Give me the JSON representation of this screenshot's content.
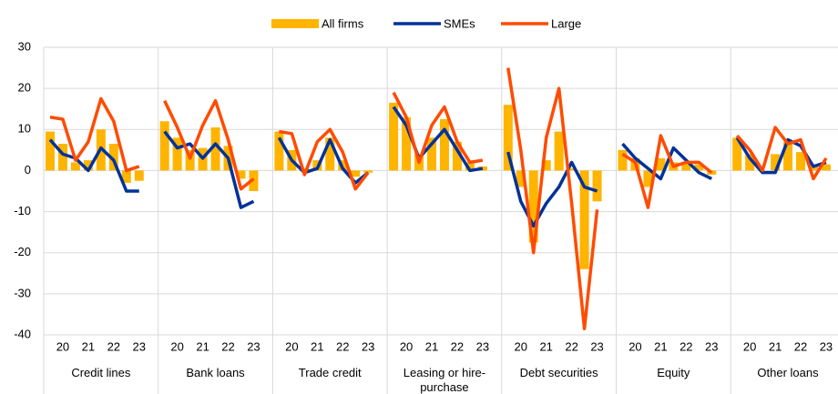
{
  "chart_data": {
    "type": "bar-line",
    "groups": [
      "Credit lines",
      "Bank loans",
      "Trade credit",
      "Leasing or hire-purchase",
      "Debt securities",
      "Equity",
      "Other loans"
    ],
    "periods": [
      null,
      "20",
      null,
      "21",
      null,
      "22",
      null,
      "23"
    ],
    "series": [
      {
        "name": "All firms",
        "color": "#ffb400",
        "kind": "bar",
        "values": [
          [
            9.5,
            6.5,
            2,
            2.5,
            10,
            6.5,
            -3,
            -2.5
          ],
          [
            12,
            8,
            5,
            5.5,
            10.5,
            6,
            -2,
            -5
          ],
          [
            9.5,
            5,
            0.5,
            2.5,
            8,
            2.5,
            -1.5,
            -0.5
          ],
          [
            16.5,
            13,
            4,
            8,
            12.5,
            7,
            2,
            1
          ],
          [
            16,
            -4,
            -17.5,
            2.5,
            9.5,
            0.5,
            -24,
            -7.5
          ],
          [
            5,
            3,
            -4,
            3,
            2,
            2,
            1.5,
            -1
          ],
          [
            8,
            4,
            0,
            4,
            7,
            4.5,
            1,
            1.5
          ]
        ]
      },
      {
        "name": "SMEs",
        "color": "#003299",
        "kind": "line",
        "values": [
          [
            7.5,
            4,
            3,
            0,
            5.5,
            2.5,
            -5,
            -5
          ],
          [
            9.5,
            5.5,
            6.5,
            3,
            6.5,
            3,
            -9,
            -7.5
          ],
          [
            8,
            2.5,
            -0.5,
            0.5,
            7.5,
            0.5,
            -3,
            -0.5
          ],
          [
            15.5,
            11,
            3,
            6.5,
            10,
            5,
            0,
            0.5
          ],
          [
            4.5,
            -7.5,
            -13.5,
            -8,
            -4,
            2,
            -4,
            -5
          ],
          [
            6.5,
            3,
            0.5,
            -2,
            5.5,
            2.5,
            -0.5,
            -2
          ],
          [
            8,
            3,
            -0.5,
            -0.5,
            7.5,
            6,
            1,
            2
          ]
        ]
      },
      {
        "name": "Large",
        "color": "#ff4b00",
        "kind": "line",
        "values": [
          [
            13,
            12.5,
            2.5,
            7,
            17.5,
            12,
            0,
            1
          ],
          [
            17,
            10.5,
            3,
            11,
            17,
            7.5,
            -4.5,
            -2
          ],
          [
            9.5,
            9,
            -1,
            7,
            10,
            4.5,
            -4.5,
            -0.5
          ],
          [
            19,
            13,
            2,
            11,
            15.5,
            7,
            2,
            2.5
          ],
          [
            25,
            5,
            -20,
            8,
            20,
            -8,
            -38.5,
            -9.5
          ],
          [
            4,
            2,
            -9,
            8.5,
            1,
            2,
            2,
            -0.5
          ],
          [
            8.5,
            5,
            0,
            10.5,
            6.5,
            7.5,
            -2,
            3
          ]
        ]
      }
    ],
    "ylim": [
      -40,
      30
    ],
    "yticks": [
      -40,
      -30,
      -20,
      -10,
      0,
      10,
      20,
      30
    ],
    "grid": true,
    "legend": "top"
  }
}
